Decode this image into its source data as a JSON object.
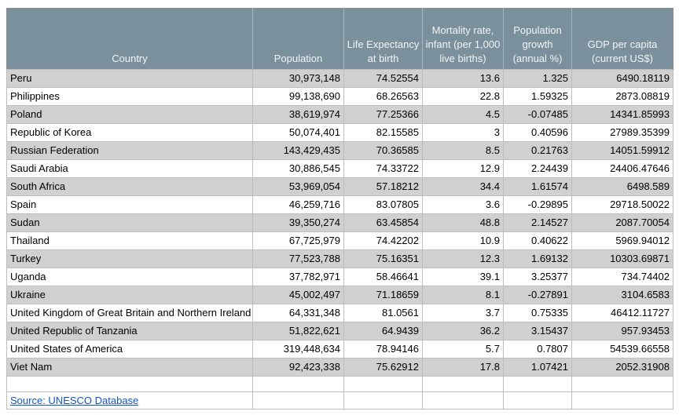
{
  "chart_data": {
    "type": "table",
    "title": "",
    "columns": [
      {
        "name": "country",
        "label": "Country"
      },
      {
        "name": "population",
        "label": "Population"
      },
      {
        "name": "life-expectancy",
        "label": "Life Expectancy at birth"
      },
      {
        "name": "infant-mortality-rate",
        "label": "Mortality rate, infant (per 1,000 live births)"
      },
      {
        "name": "population-growth",
        "label": "Population growth (annual %)"
      },
      {
        "name": "gdp-per-capita",
        "label": "GDP per capita (current US$)"
      }
    ],
    "rows": [
      [
        "Peru",
        "30,973,148",
        "74.52554",
        "13.6",
        "1.325",
        "6490.18119"
      ],
      [
        "Philippines",
        "99,138,690",
        "68.26563",
        "22.8",
        "1.59325",
        "2873.08819"
      ],
      [
        "Poland",
        "38,619,974",
        "77.25366",
        "4.5",
        "-0.07485",
        "14341.85993"
      ],
      [
        "Republic of Korea",
        "50,074,401",
        "82.15585",
        "3",
        "0.40596",
        "27989.35399"
      ],
      [
        "Russian Federation",
        "143,429,435",
        "70.36585",
        "8.5",
        "0.21763",
        "14051.59912"
      ],
      [
        "Saudi Arabia",
        "30,886,545",
        "74.33722",
        "12.9",
        "2.24439",
        "24406.47646"
      ],
      [
        "South Africa",
        "53,969,054",
        "57.18212",
        "34.4",
        "1.61574",
        "6498.589"
      ],
      [
        "Spain",
        "46,259,716",
        "83.07805",
        "3.6",
        "-0.29895",
        "29718.50022"
      ],
      [
        "Sudan",
        "39,350,274",
        "63.45854",
        "48.8",
        "2.14527",
        "2087.70054"
      ],
      [
        "Thailand",
        "67,725,979",
        "74.42202",
        "10.9",
        "0.40622",
        "5969.94012"
      ],
      [
        "Turkey",
        "77,523,788",
        "75.16351",
        "12.3",
        "1.69132",
        "10303.69871"
      ],
      [
        "Uganda",
        "37,782,971",
        "58.46641",
        "39.1",
        "3.25377",
        "734.74402"
      ],
      [
        "Ukraine",
        "45,002,497",
        "71.18659",
        "8.1",
        "-0.27891",
        "3104.6583"
      ],
      [
        "United Kingdom of Great Britain and Northern Ireland",
        "64,331,348",
        "81.0561",
        "3.7",
        "0.75335",
        "46412.11727"
      ],
      [
        "United Republic of Tanzania",
        "51,822,621",
        "64.9439",
        "36.2",
        "3.15437",
        "957.93453"
      ],
      [
        "United States of America",
        "319,448,634",
        "78.94146",
        "5.7",
        "0.7807",
        "54539.66558"
      ],
      [
        "Viet Nam",
        "92,423,338",
        "75.62912",
        "17.8",
        "1.07421",
        "2052.31908"
      ]
    ],
    "source_note": "Source: UNESCO Database",
    "layout_hints": {
      "alternating_row_shading": true,
      "header_align": "center-bottom",
      "numeric_align": "right"
    }
  },
  "footer": {
    "source_label": "Source: UNESCO Database"
  },
  "colors": {
    "header_bg": "#7a909c",
    "header_text": "#f2f5f7",
    "row_alt": "#d0d0d0",
    "row_default": "#ffffff",
    "link": "#1155cc",
    "border_outer": "#8c8c8c",
    "border_inner": "#bdbdbd"
  }
}
